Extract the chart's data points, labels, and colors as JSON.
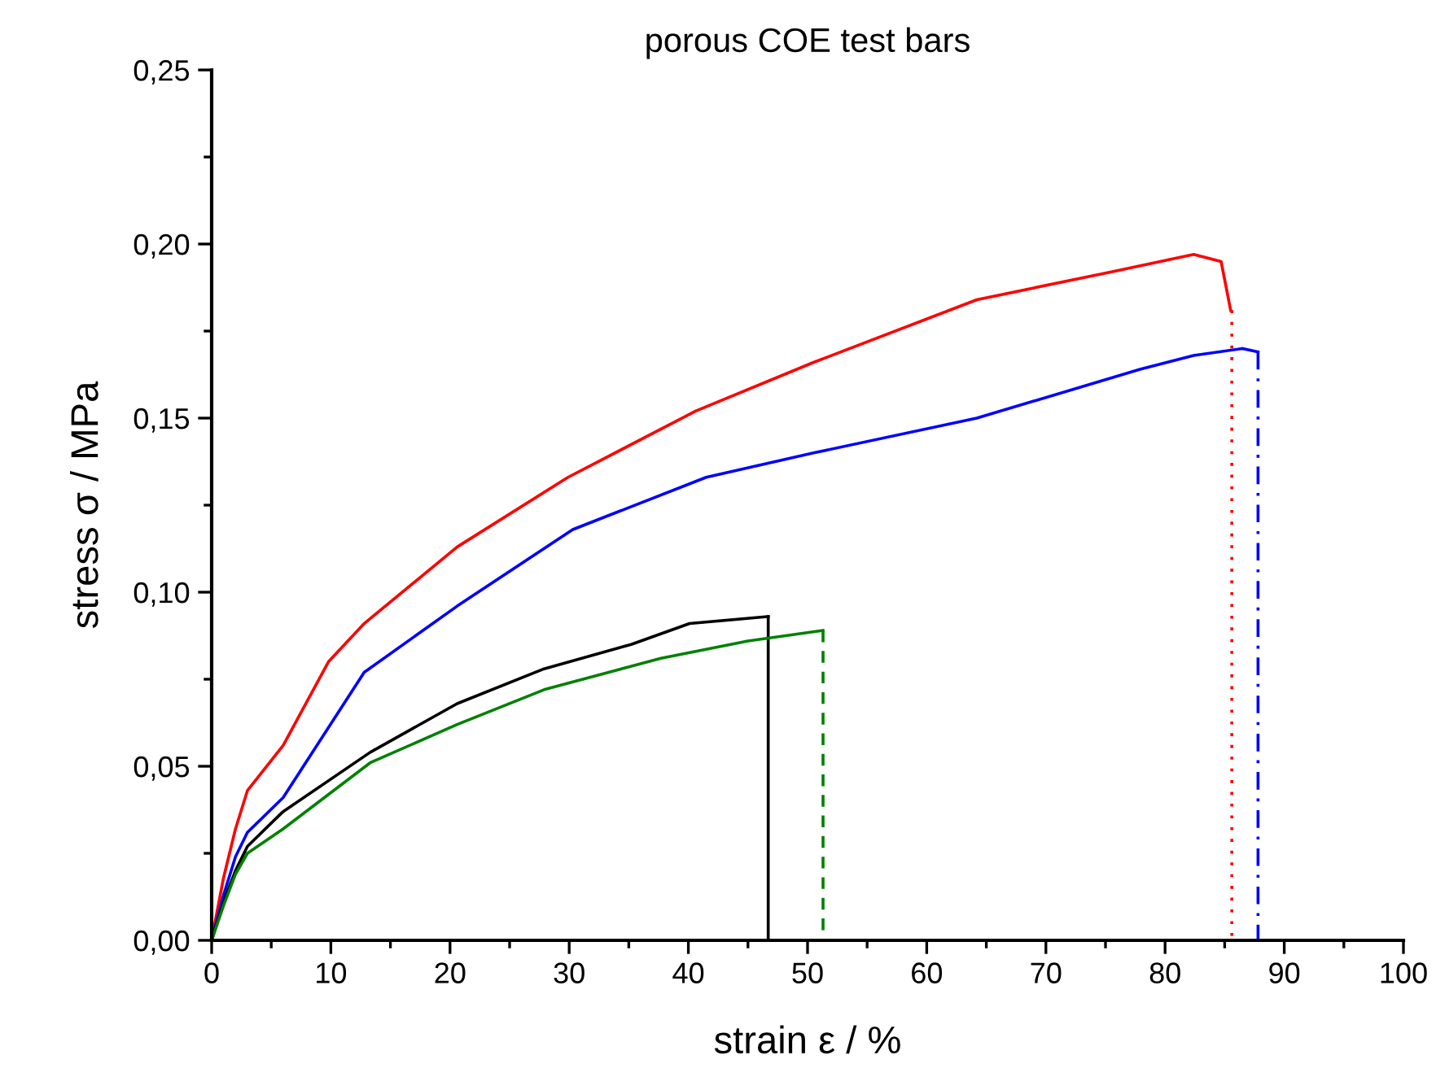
{
  "chart_data": {
    "type": "line",
    "title": "porous COE test bars",
    "xlabel": "strain ε / %",
    "ylabel": "stress σ / MPa",
    "xlim": [
      0,
      100
    ],
    "ylim": [
      0,
      0.25
    ],
    "xticks": [
      0,
      10,
      20,
      30,
      40,
      50,
      60,
      70,
      80,
      90,
      100
    ],
    "yticks": [
      {
        "value": 0,
        "label": "0,00"
      },
      {
        "value": 0.05,
        "label": "0,05"
      },
      {
        "value": 0.1,
        "label": "0,10"
      },
      {
        "value": 0.15,
        "label": "0,15"
      },
      {
        "value": 0.2,
        "label": "0,20"
      },
      {
        "value": 0.25,
        "label": "0,25"
      }
    ],
    "grid": false,
    "marker": "none",
    "series": [
      {
        "color": "#ff0000",
        "line_style": "solid",
        "x": [
          0,
          1,
          2,
          3,
          6.0,
          9.8,
          12.8,
          20.6,
          29.9,
          40.6,
          50.5,
          64.2,
          75.5,
          82.4,
          84.7,
          85.5
        ],
        "values": [
          0,
          0.018,
          0.032,
          0.043,
          0.056,
          0.08,
          0.091,
          0.113,
          0.133,
          0.152,
          0.166,
          0.184,
          0.192,
          0.197,
          0.195,
          0.181
        ]
      },
      {
        "color": "#ff0000",
        "line_style": "dotted",
        "x": [
          85.6,
          85.6
        ],
        "values": [
          0.181,
          0
        ]
      },
      {
        "color": "#0000ff",
        "line_style": "solid",
        "x": [
          0,
          1,
          2,
          3,
          6.0,
          12.8,
          20.6,
          30.3,
          41.5,
          50.5,
          64.2,
          77.9,
          82.4,
          86.5,
          87.8
        ],
        "values": [
          0,
          0.013,
          0.024,
          0.031,
          0.041,
          0.077,
          0.096,
          0.118,
          0.133,
          0.14,
          0.15,
          0.164,
          0.168,
          0.17,
          0.169
        ]
      },
      {
        "color": "#0000ff",
        "line_style": "dashdot",
        "x": [
          87.8,
          87.8
        ],
        "values": [
          0.169,
          0
        ]
      },
      {
        "color": "#000000",
        "line_style": "solid",
        "x": [
          0,
          1,
          2,
          3,
          6.0,
          13.3,
          20.6,
          27.9,
          35.2,
          40.1,
          46.7
        ],
        "values": [
          0,
          0.011,
          0.02,
          0.027,
          0.037,
          0.054,
          0.068,
          0.078,
          0.085,
          0.091,
          0.093
        ]
      },
      {
        "color": "#000000",
        "line_style": "solid",
        "x": [
          46.7,
          46.7
        ],
        "values": [
          0.093,
          0
        ]
      },
      {
        "color": "#008000",
        "line_style": "solid",
        "x": [
          0,
          1,
          2,
          3,
          6.0,
          13.3,
          20.6,
          27.9,
          37.7,
          45.0,
          51.3
        ],
        "values": [
          0,
          0.01,
          0.019,
          0.025,
          0.032,
          0.051,
          0.062,
          0.072,
          0.081,
          0.086,
          0.089
        ]
      },
      {
        "color": "#008000",
        "line_style": "dashed",
        "x": [
          51.3,
          51.3
        ],
        "values": [
          0.089,
          0
        ]
      }
    ]
  }
}
